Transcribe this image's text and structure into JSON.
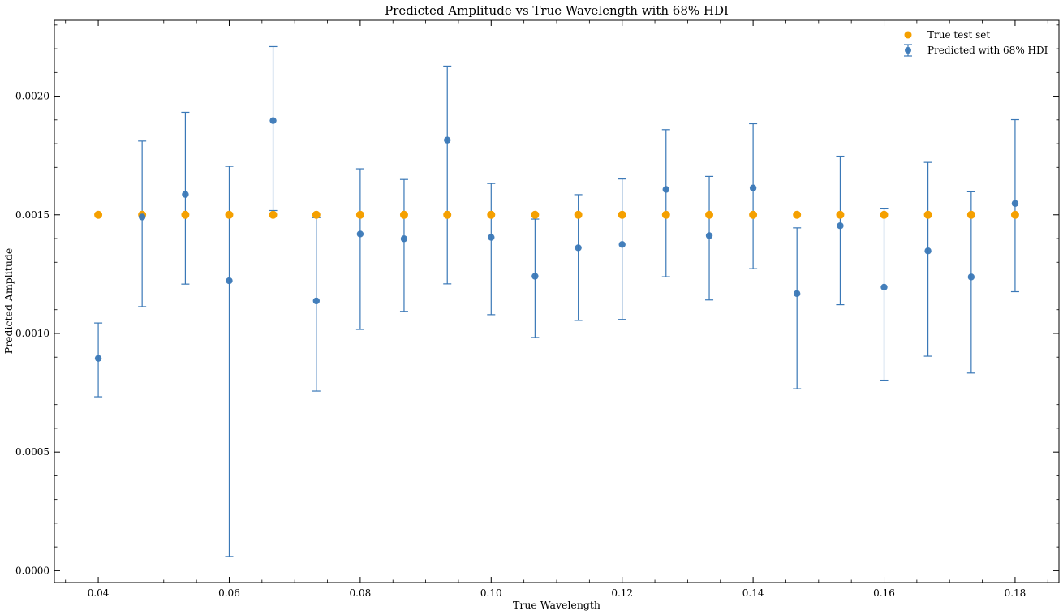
{
  "chart_data": {
    "type": "scatter",
    "title": "Predicted Amplitude vs True Wavelength with 68% HDI",
    "xlabel": "True Wavelength",
    "ylabel": "Predicted Amplitude",
    "xlim": [
      0.0333,
      0.1867
    ],
    "ylim": [
      -5e-05,
      0.00232
    ],
    "xticks": [
      0.04,
      0.06,
      0.08,
      0.1,
      0.12,
      0.14,
      0.16,
      0.18
    ],
    "xtick_labels": [
      "0.04",
      "0.06",
      "0.08",
      "0.10",
      "0.12",
      "0.14",
      "0.16",
      "0.18"
    ],
    "yticks": [
      0.0,
      0.0005,
      0.001,
      0.0015,
      0.002
    ],
    "ytick_labels": [
      "0.0000",
      "0.0005",
      "0.0010",
      "0.0015",
      "0.0020"
    ],
    "grid": false,
    "legend_position": "top-right",
    "x": [
      0.04,
      0.0467,
      0.0533,
      0.06,
      0.0667,
      0.0733,
      0.08,
      0.0867,
      0.0933,
      0.1,
      0.1067,
      0.1133,
      0.12,
      0.1267,
      0.1333,
      0.14,
      0.1467,
      0.1533,
      0.16,
      0.1667,
      0.1733,
      0.18
    ],
    "series": [
      {
        "name": "True test set",
        "color": "#f5a000",
        "values": [
          0.0015,
          0.0015,
          0.0015,
          0.0015,
          0.0015,
          0.0015,
          0.0015,
          0.0015,
          0.0015,
          0.0015,
          0.0015,
          0.0015,
          0.0015,
          0.0015,
          0.0015,
          0.0015,
          0.0015,
          0.0015,
          0.0015,
          0.0015,
          0.0015,
          0.0015
        ]
      },
      {
        "name": "Predicted with 68% HDI",
        "color": "#3a78b7",
        "values": [
          0.000895,
          0.001491,
          0.001586,
          0.001222,
          0.001897,
          0.001137,
          0.001419,
          0.001399,
          0.001815,
          0.001405,
          0.001241,
          0.001361,
          0.001375,
          0.001607,
          0.001412,
          0.001613,
          0.001168,
          0.001454,
          0.001195,
          0.001348,
          0.001238,
          0.001548
        ],
        "lower": [
          0.000733,
          0.001113,
          0.001208,
          5.98e-05,
          0.001518,
          0.000757,
          0.001017,
          0.001093,
          0.001209,
          0.001079,
          0.000983,
          0.001055,
          0.001059,
          0.001239,
          0.001141,
          0.001273,
          0.000767,
          0.001121,
          0.000803,
          0.000904,
          0.000833,
          0.001176
        ],
        "upper": [
          0.001044,
          0.001811,
          0.001932,
          0.001704,
          0.002209,
          0.001488,
          0.001694,
          0.001649,
          0.002127,
          0.001632,
          0.001482,
          0.001585,
          0.001651,
          0.001859,
          0.001662,
          0.001884,
          0.001445,
          0.001747,
          0.001528,
          0.001721,
          0.001597,
          0.001901
        ]
      }
    ]
  }
}
